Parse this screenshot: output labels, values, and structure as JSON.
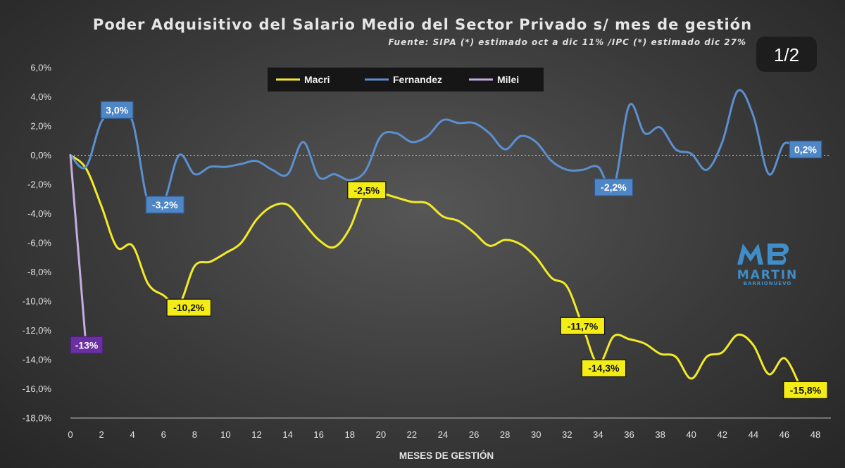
{
  "page_badge": "1/2",
  "watermark": {
    "line1": "MARTIN",
    "line2": "BARRIONUEVO"
  },
  "chart_data": {
    "type": "line",
    "title": "Poder Adquisitivo del Salario Medio del Sector Privado s/ mes de gestión",
    "subtitle": "Fuente: SIPA (*) estimado oct a dic 11% /IPC (*) estimado dic 27%",
    "xlabel": "MESES DE GESTIÓN",
    "ylabel": "",
    "xlim": [
      0,
      48
    ],
    "ylim": [
      -18,
      6
    ],
    "x_ticks": [
      0,
      2,
      4,
      6,
      8,
      10,
      12,
      14,
      16,
      18,
      20,
      22,
      24,
      26,
      28,
      30,
      32,
      34,
      36,
      38,
      40,
      42,
      44,
      46,
      48
    ],
    "y_ticks": [
      6,
      4,
      2,
      0,
      -2,
      -4,
      -6,
      -8,
      -10,
      -12,
      -14,
      -16,
      -18
    ],
    "y_tick_labels": [
      "6,0%",
      "4,0%",
      "2,0%",
      "0,0%",
      "-2,0%",
      "-4,0%",
      "-6,0%",
      "-8,0%",
      "-10,0%",
      "-12,0%",
      "-14,0%",
      "-16,0%",
      "-18,0%"
    ],
    "legend": {
      "position": "top-left"
    },
    "grid": false,
    "series": [
      {
        "name": "Macri",
        "color": "#f2ea29",
        "x": [
          0,
          1,
          2,
          3,
          4,
          5,
          6,
          7,
          8,
          9,
          10,
          11,
          12,
          13,
          14,
          15,
          16,
          17,
          18,
          19,
          20,
          21,
          22,
          23,
          24,
          25,
          26,
          27,
          28,
          29,
          30,
          31,
          32,
          33,
          34,
          35,
          36,
          37,
          38,
          39,
          40,
          41,
          42,
          43,
          44,
          45,
          46,
          47,
          48
        ],
        "values": [
          0,
          -0.9,
          -3.5,
          -6.3,
          -6.2,
          -8.8,
          -9.6,
          -10.2,
          -7.6,
          -7.3,
          -6.7,
          -6.0,
          -4.4,
          -3.5,
          -3.4,
          -4.6,
          -5.8,
          -6.3,
          -5.0,
          -2.5,
          -2.6,
          -2.9,
          -3.2,
          -3.3,
          -4.2,
          -4.5,
          -5.3,
          -6.2,
          -5.8,
          -6.1,
          -7.0,
          -8.4,
          -9.0,
          -11.7,
          -14.3,
          -12.4,
          -12.6,
          -12.9,
          -13.6,
          -13.8,
          -15.3,
          -13.8,
          -13.5,
          -12.3,
          -13.0,
          -15.0,
          -13.9,
          -15.8,
          null
        ],
        "data_labels": [
          {
            "x": 7,
            "y": -10.2,
            "text": "-10,2%"
          },
          {
            "x": 19,
            "y": -2.5,
            "text": "-2,5%"
          },
          {
            "x": 33,
            "y": -11.7,
            "text": "-11,7%"
          },
          {
            "x": 34,
            "y": -14.3,
            "text": "-14,3%"
          },
          {
            "x": 47,
            "y": -15.8,
            "text": "-15,8%"
          }
        ]
      },
      {
        "name": "Fernandez",
        "color": "#5b8fd0",
        "x": [
          0,
          1,
          2,
          3,
          4,
          5,
          6,
          7,
          8,
          9,
          10,
          11,
          12,
          13,
          14,
          15,
          16,
          17,
          18,
          19,
          20,
          21,
          22,
          23,
          24,
          25,
          26,
          27,
          28,
          29,
          30,
          31,
          32,
          33,
          34,
          35,
          36,
          37,
          38,
          39,
          40,
          41,
          42,
          43,
          44,
          45,
          46,
          47,
          48
        ],
        "values": [
          0,
          -0.8,
          2.3,
          3.0,
          2.3,
          -3.2,
          -3.2,
          0.0,
          -1.3,
          -0.8,
          -0.8,
          -0.6,
          -0.4,
          -1.0,
          -1.3,
          0.9,
          -1.5,
          -1.3,
          -1.7,
          -1.1,
          1.3,
          1.5,
          0.9,
          1.3,
          2.4,
          2.2,
          2.2,
          1.5,
          0.4,
          1.3,
          0.9,
          -0.4,
          -1.0,
          -1.0,
          -0.8,
          -2.2,
          3.4,
          1.5,
          1.9,
          0.4,
          0.1,
          -1.0,
          0.9,
          4.4,
          2.7,
          -1.3,
          0.8,
          0.2,
          null
        ],
        "data_labels": [
          {
            "x": 3,
            "y": 3.0,
            "text": "3,0%"
          },
          {
            "x": 6,
            "y": -3.2,
            "text": "-3,2%"
          },
          {
            "x": 35,
            "y": -2.2,
            "text": "-2,2%"
          },
          {
            "x": 47,
            "y": 0.2,
            "text": "0,2%"
          }
        ]
      },
      {
        "name": "Milei",
        "color": "#c4aee0",
        "x": [
          0,
          1
        ],
        "values": [
          0,
          -13.0
        ],
        "data_labels": [
          {
            "x": 1,
            "y": -13.0,
            "text": "-13%"
          }
        ]
      }
    ]
  }
}
